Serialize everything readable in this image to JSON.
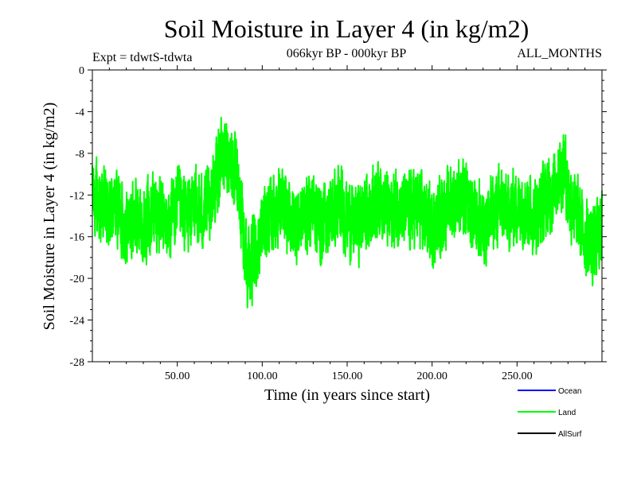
{
  "chart_data": {
    "type": "line",
    "title": "Soil Moisture in Layer 4 (in kg/m2)",
    "subtitle_left": "Expt = tdwtS-tdwta",
    "subtitle_center": "066kyr BP - 000kyr BP",
    "subtitle_right": "ALL_MONTHS",
    "xlabel": "Time (in years since start)",
    "ylabel": "Soil Moisture in Layer 4 (in kg/m2)",
    "xlim": [
      0,
      300
    ],
    "ylim": [
      -28,
      0
    ],
    "x_ticks": [
      {
        "value": 50,
        "label": "50.00"
      },
      {
        "value": 100,
        "label": "100.00"
      },
      {
        "value": 150,
        "label": "150.00"
      },
      {
        "value": 200,
        "label": "200.00"
      },
      {
        "value": 250,
        "label": "250.00"
      }
    ],
    "y_ticks": [
      {
        "value": 0,
        "label": "0"
      },
      {
        "value": -4,
        "label": "-4"
      },
      {
        "value": -8,
        "label": "-8"
      },
      {
        "value": -12,
        "label": "-12"
      },
      {
        "value": -16,
        "label": "-16"
      },
      {
        "value": -20,
        "label": "-20"
      },
      {
        "value": -24,
        "label": "-24"
      },
      {
        "value": -28,
        "label": "-28"
      }
    ],
    "series": [
      {
        "name": "Land",
        "color": "#00ff00",
        "x": [
          0,
          5,
          10,
          15,
          20,
          25,
          30,
          35,
          40,
          45,
          50,
          55,
          60,
          65,
          70,
          72,
          75,
          78,
          80,
          82,
          85,
          88,
          90,
          92,
          95,
          98,
          100,
          105,
          110,
          115,
          120,
          125,
          130,
          135,
          140,
          145,
          150,
          155,
          160,
          165,
          170,
          175,
          180,
          185,
          190,
          195,
          200,
          205,
          210,
          215,
          220,
          225,
          230,
          235,
          240,
          245,
          250,
          255,
          260,
          265,
          270,
          275,
          278,
          280,
          285,
          290,
          295,
          300
        ],
        "values": [
          -12,
          -13,
          -14,
          -13,
          -15,
          -14,
          -15,
          -13,
          -14,
          -15,
          -13,
          -14,
          -13,
          -14,
          -12,
          -11,
          -9,
          -8,
          -8,
          -9,
          -11,
          -14,
          -17,
          -19,
          -18,
          -17,
          -15,
          -14,
          -13,
          -14,
          -15,
          -14,
          -13,
          -15,
          -14,
          -13,
          -14,
          -15,
          -14,
          -13,
          -12,
          -14,
          -13,
          -14,
          -13,
          -14,
          -15,
          -14,
          -13,
          -12,
          -13,
          -14,
          -15,
          -14,
          -13,
          -14,
          -13,
          -13,
          -14,
          -13,
          -12,
          -10,
          -9,
          -12,
          -14,
          -16,
          -17,
          -15
        ],
        "noise_amplitude": 3.2,
        "samples_per_year": 12
      },
      {
        "name": "Ocean",
        "color": "#0000ff",
        "x": [],
        "values": []
      },
      {
        "name": "AllSurf",
        "color": "#000000",
        "x": [],
        "values": []
      }
    ],
    "legend_position": "bottom-right",
    "legend": [
      {
        "name": "Ocean",
        "color": "#0000ff"
      },
      {
        "name": "Land",
        "color": "#00ff00"
      },
      {
        "name": "AllSurf",
        "color": "#000000"
      }
    ]
  }
}
